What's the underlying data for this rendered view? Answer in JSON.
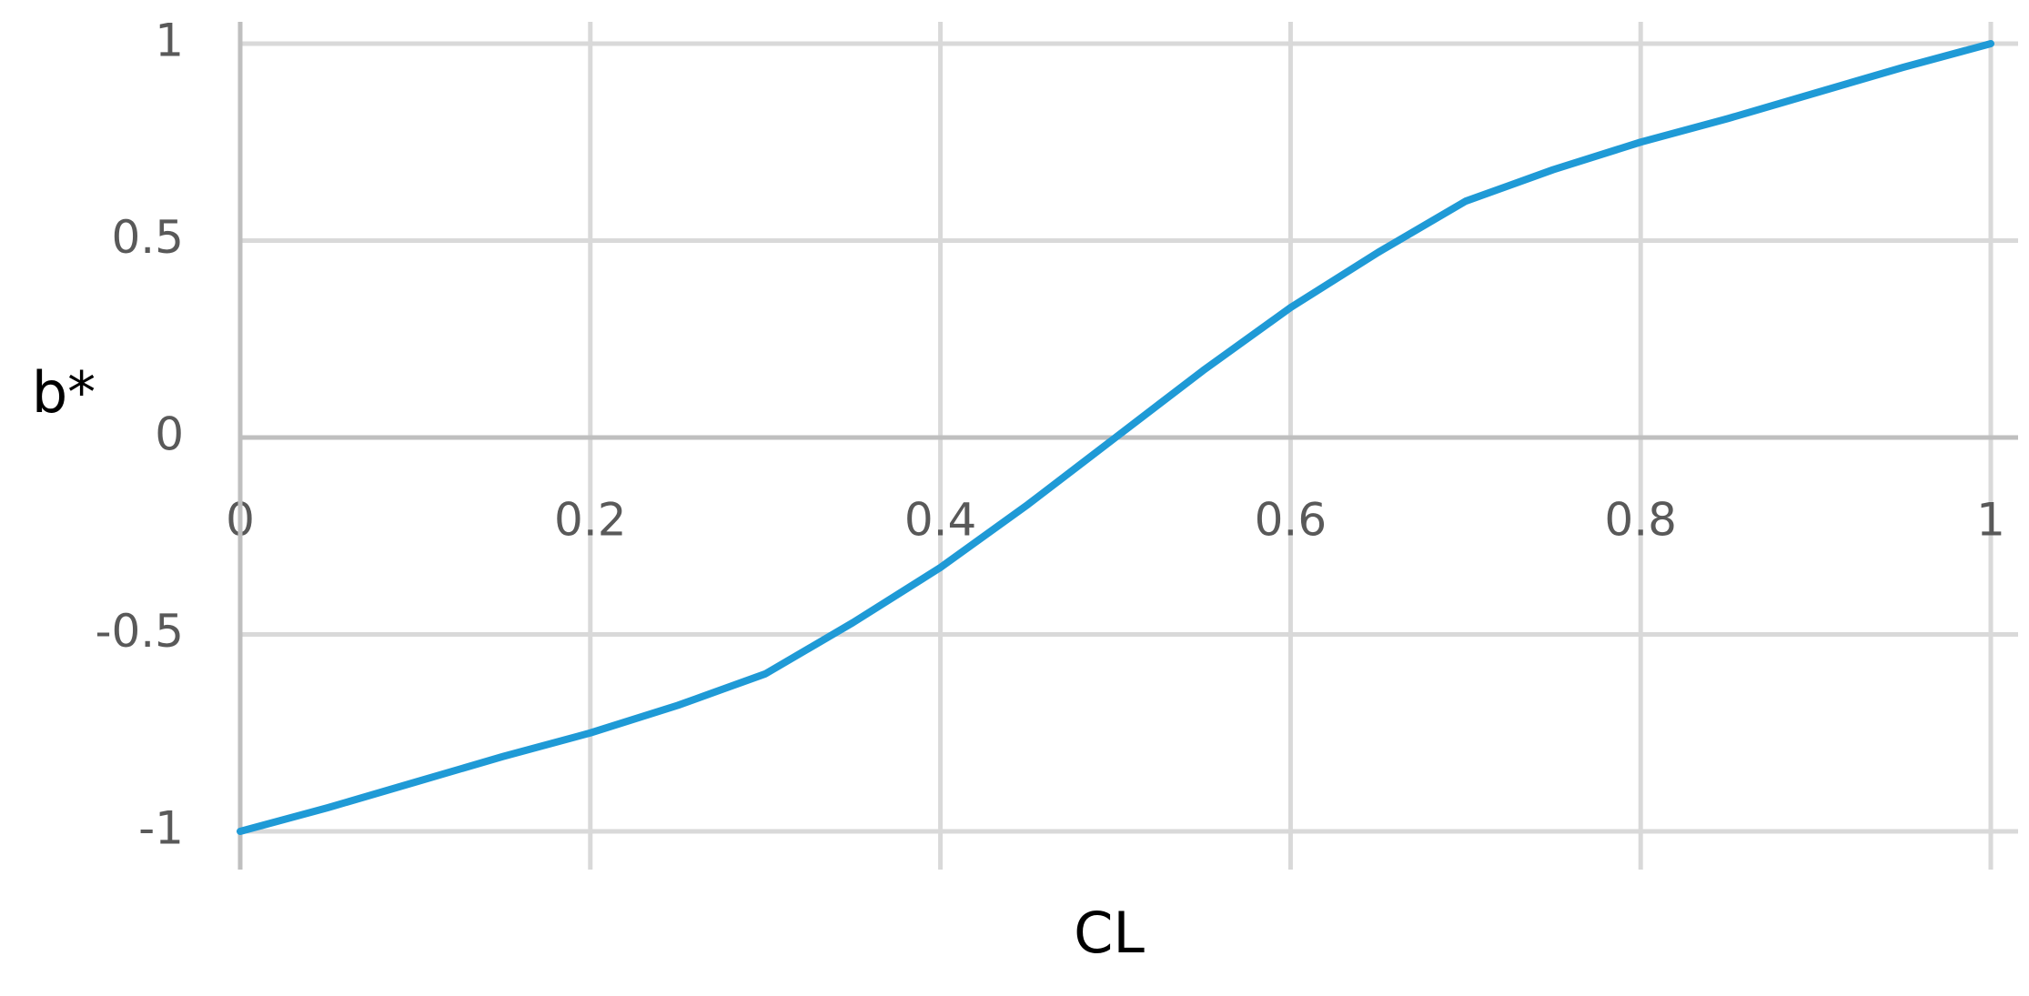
{
  "chart_data": {
    "type": "line",
    "xlabel": "CL",
    "ylabel": "b*",
    "x": [
      0,
      0.05,
      0.1,
      0.15,
      0.2,
      0.25,
      0.3,
      0.35,
      0.4,
      0.45,
      0.5,
      0.55,
      0.6,
      0.65,
      0.7,
      0.75,
      0.8,
      0.85,
      0.9,
      0.95,
      1
    ],
    "series": [
      {
        "name": "b*",
        "color": "#1f9ad6",
        "values": [
          -1,
          -0.94,
          -0.875,
          -0.81,
          -0.75,
          -0.68,
          -0.6,
          -0.47,
          -0.33,
          -0.17,
          0,
          0.17,
          0.33,
          0.47,
          0.6,
          0.68,
          0.75,
          0.81,
          0.875,
          0.94,
          1
        ]
      }
    ],
    "xlim": [
      0,
      1
    ],
    "xticks": [
      0,
      0.2,
      0.4,
      0.6,
      0.8,
      1
    ],
    "ylim": [
      -1,
      1
    ],
    "yticks": [
      -1,
      -0.5,
      0,
      0.5,
      1
    ],
    "grid": true
  }
}
